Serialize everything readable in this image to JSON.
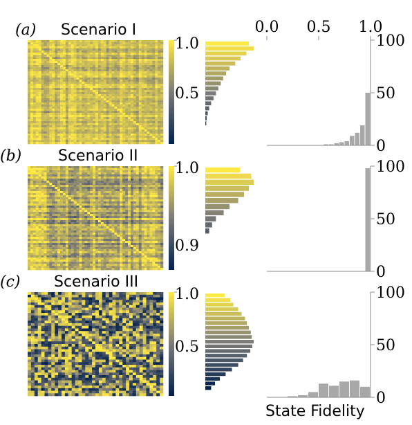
{
  "colors": {
    "cmap_low": "#00204d",
    "cmap_mid": "#7c7b78",
    "cmap_high": "#ffe945",
    "hist_bar": "#a8a8a8",
    "axis": "#888888",
    "text": "#000000"
  },
  "panels": [
    {
      "letter": "(a)",
      "title": "Scenario I",
      "cbar_ticks": [
        "1.0",
        "0.5"
      ]
    },
    {
      "letter": "(b)",
      "title": "Scenario II",
      "cbar_ticks": [
        "1.0",
        "0.9"
      ]
    },
    {
      "letter": "(c)",
      "title": "Scenario III",
      "cbar_ticks": [
        "1.0",
        "0.5"
      ]
    }
  ],
  "hist_xlabel": "State Fidelity",
  "chart_data": [
    {
      "type": "heatmap",
      "title": "Scenario I",
      "panel": "(a)",
      "matrix_size": 100,
      "diagonal": 1.0,
      "colorbar_range": [
        0.0,
        1.0
      ],
      "colorbar_ticks": [
        1.0,
        0.5
      ],
      "value_distribution": {
        "bins": [
          1.0,
          0.95,
          0.9,
          0.85,
          0.8,
          0.75,
          0.7,
          0.65,
          0.6,
          0.55,
          0.5,
          0.45,
          0.4,
          0.35,
          0.3,
          0.25,
          0.2
        ],
        "relative_frequency": [
          0.9,
          1.0,
          0.85,
          0.73,
          0.62,
          0.5,
          0.43,
          0.37,
          0.32,
          0.27,
          0.22,
          0.17,
          0.12,
          0.08,
          0.05,
          0.03,
          0.02
        ]
      }
    },
    {
      "type": "heatmap",
      "title": "Scenario II",
      "panel": "(b)",
      "matrix_size": 100,
      "diagonal": 1.0,
      "colorbar_range": [
        0.85,
        1.0
      ],
      "colorbar_ticks": [
        1.0,
        0.9
      ],
      "value_distribution": {
        "bins": [
          1.0,
          0.99,
          0.98,
          0.97,
          0.96,
          0.95,
          0.94,
          0.93,
          0.92,
          0.91,
          0.9
        ],
        "relative_frequency": [
          0.72,
          0.95,
          1.0,
          0.9,
          0.8,
          0.68,
          0.5,
          0.38,
          0.22,
          0.14,
          0.08
        ]
      }
    },
    {
      "type": "heatmap",
      "title": "Scenario III",
      "panel": "(c)",
      "matrix_size": 40,
      "diagonal": 1.0,
      "colorbar_range": [
        0.0,
        1.0
      ],
      "colorbar_ticks": [
        1.0,
        0.5
      ],
      "value_distribution": {
        "bins": [
          1.0,
          0.95,
          0.9,
          0.85,
          0.8,
          0.75,
          0.7,
          0.65,
          0.6,
          0.55,
          0.5,
          0.45,
          0.4,
          0.35,
          0.3,
          0.25,
          0.2,
          0.15,
          0.1,
          0.05,
          0.0
        ],
        "relative_frequency": [
          0.4,
          0.52,
          0.58,
          0.68,
          0.75,
          0.82,
          0.86,
          0.9,
          0.94,
          0.96,
          1.0,
          0.97,
          0.93,
          0.86,
          0.78,
          0.68,
          0.55,
          0.42,
          0.3,
          0.2,
          0.12
        ]
      }
    },
    {
      "type": "bar",
      "panel": "(a)",
      "xlim": [
        0.0,
        1.0
      ],
      "xticks": [
        0.0,
        0.5,
        1.0
      ],
      "ylim": [
        0,
        100
      ],
      "yticks": [
        0,
        50,
        100
      ],
      "bin_width": 0.05,
      "bins": [
        0.45,
        0.5,
        0.55,
        0.6,
        0.65,
        0.7,
        0.75,
        0.8,
        0.85,
        0.9,
        0.95
      ],
      "values": [
        0,
        0,
        1,
        1,
        2,
        3,
        4,
        9,
        12,
        19,
        50
      ]
    },
    {
      "type": "bar",
      "panel": "(b)",
      "xlim": [
        0.0,
        1.0
      ],
      "xticks": [
        0.0,
        0.5,
        1.0
      ],
      "ylim": [
        0,
        100
      ],
      "yticks": [
        0,
        50,
        100
      ],
      "bin_width": 0.05,
      "bins": [
        0.95
      ],
      "values": [
        98
      ]
    },
    {
      "type": "bar",
      "panel": "(c)",
      "xlim": [
        0.0,
        1.0
      ],
      "xticks": [
        0.0,
        0.5,
        1.0
      ],
      "ylim": [
        0,
        100
      ],
      "yticks": [
        0,
        50,
        100
      ],
      "xlabel": "State Fidelity",
      "bin_width": 0.1,
      "bins": [
        0.0,
        0.1,
        0.2,
        0.3,
        0.4,
        0.5,
        0.6,
        0.7,
        0.8,
        0.9
      ],
      "values": [
        0,
        0,
        1,
        2,
        5,
        13,
        11,
        15,
        16,
        10
      ]
    }
  ]
}
